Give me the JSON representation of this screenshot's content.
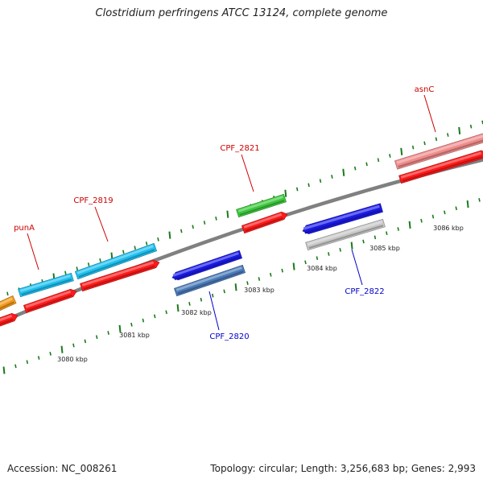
{
  "title": "Clostridium perfringens ATCC 13124, complete genome",
  "footer": {
    "accession": "Accession: NC_008261",
    "summary": "Topology: circular; Length: 3,256,683 bp; Genes: 2,993"
  },
  "colors": {
    "backbone": "#808080",
    "tick": "#1a7a1a",
    "label_forward": "#cc0000",
    "label_reverse": "#0000cc",
    "scale_text": "#222222",
    "gene_red": "#ff1a1a",
    "gene_sky": "#1ec0f0",
    "gene_blue": "#1a1ae6",
    "gene_steel": "#4a7ab8",
    "gene_green": "#3cc83c",
    "gene_grey": "#c8c8c8",
    "gene_pink": "#f08c8c",
    "gene_orange": "#f29a1a"
  },
  "scale_labels": [
    "3080 kbp",
    "3081 kbp",
    "3082 kbp",
    "3083 kbp",
    "3084 kbp",
    "3085 kbp",
    "3086 kbp"
  ],
  "gene_labels": {
    "punA": "punA",
    "cpf2819": "CPF_2819",
    "cpf2821": "CPF_2821",
    "asnC": "asnC",
    "cpf2820": "CPF_2820",
    "cpf2822": "CPF_2822"
  }
}
